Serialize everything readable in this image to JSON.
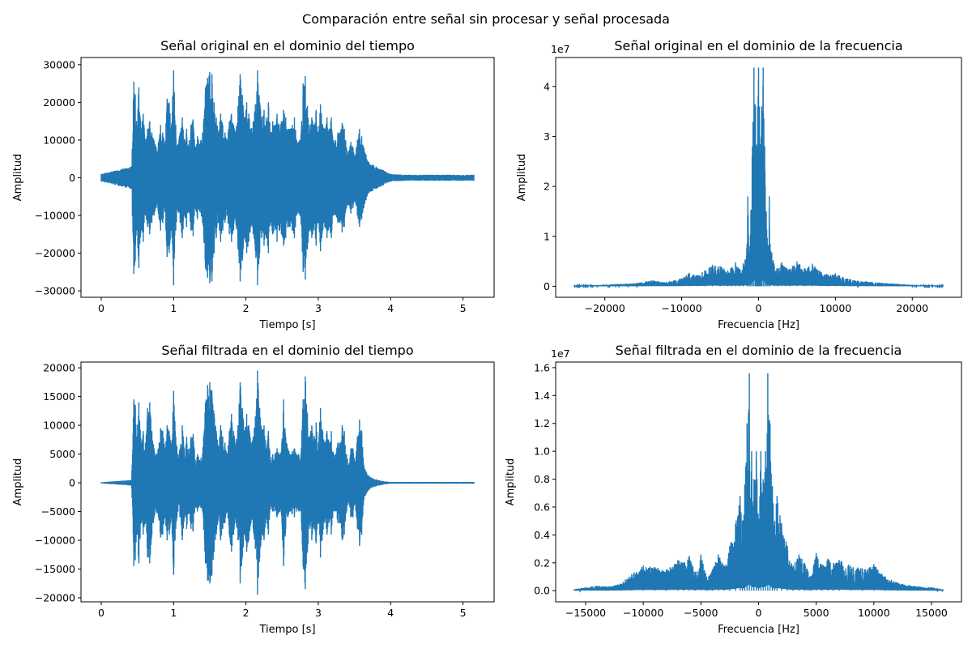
{
  "figure": {
    "suptitle": "Comparación entre señal sin procesar y señal procesada"
  },
  "colors": {
    "line": "#1f77b4",
    "axes": "#000000",
    "background": "#ffffff"
  },
  "chart_data": [
    {
      "type": "line",
      "title": "Señal original en el dominio del tiempo",
      "xlabel": "Tiempo [s]",
      "ylabel": "Amplitud",
      "xlim": [
        -0.28,
        5.43
      ],
      "ylim": [
        -31700,
        31900
      ],
      "xticks": [
        0,
        1,
        2,
        3,
        4,
        5
      ],
      "xtick_labels": [
        "0",
        "1",
        "2",
        "3",
        "4",
        "5"
      ],
      "yticks": [
        -30000,
        -20000,
        -10000,
        0,
        10000,
        20000,
        30000
      ],
      "ytick_labels": [
        "−30000",
        "−20000",
        "−10000",
        "0",
        "10000",
        "20000",
        "30000"
      ],
      "offset_text": "",
      "series": [
        {
          "x": [
            0.0,
            0.42,
            0.45,
            0.47,
            0.49,
            0.52,
            0.55,
            0.58,
            0.61,
            0.64,
            0.67,
            0.7,
            0.73,
            0.76,
            0.79,
            0.82,
            0.85,
            0.88,
            0.91,
            0.94,
            0.97,
            1.0,
            1.03,
            1.06,
            1.09,
            1.12,
            1.15,
            1.18,
            1.21,
            1.24,
            1.27,
            1.3,
            1.33,
            1.36,
            1.4,
            1.44,
            1.47,
            1.5,
            1.53,
            1.56,
            1.59,
            1.62,
            1.65,
            1.68,
            1.71,
            1.74,
            1.77,
            1.8,
            1.83,
            1.86,
            1.89,
            1.92,
            1.95,
            1.98,
            2.01,
            2.04,
            2.07,
            2.1,
            2.13,
            2.16,
            2.19,
            2.22,
            2.25,
            2.28,
            2.31,
            2.34,
            2.37,
            2.4,
            2.43,
            2.46,
            2.49,
            2.52,
            2.55,
            2.58,
            2.61,
            2.64,
            2.67,
            2.7,
            2.73,
            2.76,
            2.79,
            2.82,
            2.85,
            2.88,
            2.91,
            2.94,
            2.97,
            3.0,
            3.03,
            3.06,
            3.09,
            3.12,
            3.15,
            3.18,
            3.21,
            3.24,
            3.27,
            3.3,
            3.33,
            3.36,
            3.39,
            3.42,
            3.45,
            3.48,
            3.51,
            3.54,
            3.57,
            3.6,
            3.63,
            3.66,
            3.7,
            3.75,
            3.8,
            3.9,
            4.0,
            4.2,
            4.5,
            4.8,
            5.15
          ],
          "envelope": [
            1000,
            3000,
            25500,
            22000,
            14000,
            24000,
            13000,
            17000,
            10000,
            13000,
            15000,
            12000,
            10000,
            8000,
            9500,
            14000,
            12000,
            9000,
            21000,
            20000,
            14000,
            28500,
            14000,
            9000,
            12000,
            16000,
            10000,
            13000,
            9000,
            14000,
            15500,
            8000,
            11000,
            9000,
            12000,
            24000,
            26500,
            28000,
            27500,
            20000,
            16000,
            12000,
            17000,
            14000,
            12000,
            10000,
            15000,
            17000,
            14000,
            12000,
            19000,
            27500,
            22000,
            16000,
            20000,
            17000,
            13000,
            15000,
            19500,
            28500,
            20000,
            16000,
            18000,
            16000,
            20000,
            12000,
            15000,
            14000,
            17000,
            14000,
            15000,
            18000,
            16000,
            13000,
            13000,
            14000,
            16000,
            10000,
            9500,
            11000,
            25000,
            27000,
            19000,
            14000,
            16000,
            14000,
            18000,
            12000,
            19500,
            14000,
            13000,
            16000,
            13000,
            16000,
            10000,
            10000,
            12000,
            12000,
            14500,
            13000,
            8000,
            7000,
            9500,
            8000,
            6000,
            10000,
            13000,
            11000,
            8000,
            6000,
            4000,
            3500,
            3000,
            2000,
            1000,
            800,
            800,
            800,
            800
          ]
        }
      ]
    },
    {
      "type": "line",
      "title": "Señal original en el dominio de la frecuencia",
      "xlabel": "Frecuencia [Hz]",
      "ylabel": "Amplitud",
      "xlim": [
        -26400,
        26400
      ],
      "ylim": [
        -2200000,
        45800000
      ],
      "xticks": [
        -20000,
        -10000,
        0,
        10000,
        20000
      ],
      "xtick_labels": [
        "−20000",
        "−10000",
        "0",
        "10000",
        "20000"
      ],
      "yticks": [
        0,
        10000000,
        20000000,
        30000000,
        40000000
      ],
      "ytick_labels": [
        "0",
        "1",
        "2",
        "3",
        "4"
      ],
      "offset_text": "1e7",
      "series": [
        {
          "x": [
            -24000,
            -20000,
            -18000,
            -16000,
            -14000,
            -12000,
            -10000,
            -9000,
            -8000,
            -7000,
            -6000,
            -5000,
            -4000,
            -3500,
            -3000,
            -2500,
            -2000,
            -1500,
            -1400,
            -1200,
            -1000,
            -800,
            -600,
            -400,
            -250,
            -100,
            0,
            100,
            250,
            400,
            600,
            800,
            1000,
            1200,
            1400,
            1500,
            2000,
            2500,
            3000,
            3500,
            4000,
            5000,
            6000,
            7000,
            8000,
            9000,
            10000,
            11000,
            12000,
            14000,
            16000,
            18000,
            20000,
            24000
          ],
          "envelope": [
            150000,
            300000,
            500000,
            600000,
            1200000,
            900000,
            1600000,
            2700000,
            2200000,
            3200000,
            4300000,
            4000000,
            3200000,
            3800000,
            4800000,
            3500000,
            4600000,
            8500000,
            18000000,
            7000000,
            15000000,
            28000000,
            43800000,
            36000000,
            28000000,
            36000000,
            43800000,
            36000000,
            28000000,
            36000000,
            43800000,
            28000000,
            15000000,
            7000000,
            18000000,
            8500000,
            4600000,
            3500000,
            4800000,
            3800000,
            3500000,
            5000000,
            3600000,
            4500000,
            3000000,
            2400000,
            2600000,
            1800000,
            1400000,
            1000000,
            700000,
            500000,
            300000,
            150000
          ]
        }
      ]
    },
    {
      "type": "line",
      "title": "Señal filtrada en el dominio del tiempo",
      "xlabel": "Tiempo [s]",
      "ylabel": "Amplitud",
      "xlim": [
        -0.28,
        5.43
      ],
      "ylim": [
        -20700,
        21000
      ],
      "xticks": [
        0,
        1,
        2,
        3,
        4,
        5
      ],
      "xtick_labels": [
        "0",
        "1",
        "2",
        "3",
        "4",
        "5"
      ],
      "yticks": [
        -20000,
        -15000,
        -10000,
        -5000,
        0,
        5000,
        10000,
        15000,
        20000
      ],
      "ytick_labels": [
        "−20000",
        "−15000",
        "−10000",
        "−5000",
        "0",
        "5000",
        "10000",
        "15000",
        "20000"
      ],
      "offset_text": "",
      "series": [
        {
          "x": [
            0.0,
            0.42,
            0.45,
            0.47,
            0.49,
            0.52,
            0.55,
            0.58,
            0.61,
            0.64,
            0.67,
            0.7,
            0.73,
            0.76,
            0.79,
            0.82,
            0.85,
            0.88,
            0.91,
            0.94,
            0.97,
            1.0,
            1.03,
            1.06,
            1.09,
            1.12,
            1.15,
            1.18,
            1.21,
            1.24,
            1.27,
            1.3,
            1.33,
            1.36,
            1.4,
            1.44,
            1.47,
            1.5,
            1.53,
            1.56,
            1.59,
            1.62,
            1.65,
            1.68,
            1.71,
            1.74,
            1.77,
            1.8,
            1.83,
            1.86,
            1.89,
            1.92,
            1.95,
            1.98,
            2.01,
            2.04,
            2.07,
            2.1,
            2.13,
            2.16,
            2.19,
            2.22,
            2.25,
            2.28,
            2.31,
            2.34,
            2.37,
            2.4,
            2.43,
            2.46,
            2.49,
            2.52,
            2.55,
            2.58,
            2.61,
            2.64,
            2.67,
            2.7,
            2.73,
            2.76,
            2.79,
            2.82,
            2.85,
            2.88,
            2.91,
            2.94,
            2.97,
            3.0,
            3.03,
            3.06,
            3.09,
            3.12,
            3.15,
            3.18,
            3.21,
            3.24,
            3.27,
            3.3,
            3.33,
            3.36,
            3.39,
            3.42,
            3.45,
            3.48,
            3.51,
            3.54,
            3.57,
            3.6,
            3.63,
            3.66,
            3.7,
            3.75,
            3.8,
            3.9,
            4.0,
            4.2,
            4.5,
            4.8,
            5.15
          ],
          "envelope": [
            100,
            500,
            14500,
            13500,
            8000,
            14000,
            7000,
            9000,
            7000,
            13000,
            14000,
            9000,
            6000,
            5000,
            6000,
            9500,
            9000,
            6000,
            10000,
            9000,
            6000,
            16000,
            8000,
            5000,
            6000,
            10000,
            6000,
            8000,
            5000,
            8000,
            8500,
            4000,
            5000,
            4000,
            5000,
            14000,
            17000,
            17500,
            16000,
            12000,
            9000,
            6000,
            10000,
            8000,
            7000,
            5000,
            9000,
            12000,
            9000,
            7000,
            10000,
            17500,
            13000,
            9000,
            12000,
            10000,
            7000,
            8000,
            11500,
            19500,
            13000,
            9000,
            10000,
            6000,
            9000,
            4000,
            5000,
            5000,
            6000,
            5000,
            5500,
            14500,
            8000,
            6000,
            5000,
            5500,
            6000,
            5000,
            5000,
            5000,
            14500,
            18500,
            12000,
            8000,
            10000,
            8000,
            10500,
            7000,
            13000,
            9000,
            7000,
            9000,
            7000,
            9000,
            5000,
            5000,
            7000,
            7000,
            10000,
            9000,
            5000,
            3000,
            6000,
            6000,
            3500,
            8000,
            11000,
            9000,
            3000,
            2000,
            1200,
            800,
            600,
            300,
            150,
            150,
            150,
            150,
            150
          ]
        }
      ]
    },
    {
      "type": "line",
      "title": "Señal filtrada en el dominio de la frecuencia",
      "xlabel": "Frecuencia [Hz]",
      "ylabel": "Amplitud",
      "xlim": [
        -17600,
        17600
      ],
      "ylim": [
        -800000,
        16400000
      ],
      "xticks": [
        -15000,
        -10000,
        -5000,
        0,
        5000,
        10000,
        15000
      ],
      "xtick_labels": [
        "−15000",
        "−10000",
        "−5000",
        "0",
        "5000",
        "10000",
        "15000"
      ],
      "yticks": [
        0,
        2000000,
        4000000,
        6000000,
        8000000,
        10000000,
        12000000,
        14000000,
        16000000
      ],
      "ytick_labels": [
        "0.0",
        "0.2",
        "0.4",
        "0.6",
        "0.8",
        "1.0",
        "1.2",
        "1.4",
        "1.6"
      ],
      "offset_text": "1e7",
      "series": [
        {
          "x": [
            -16000,
            -15000,
            -14000,
            -13000,
            -12000,
            -11000,
            -10000,
            -9000,
            -8000,
            -7000,
            -6500,
            -6000,
            -5500,
            -5000,
            -4500,
            -4000,
            -3500,
            -3000,
            -2500,
            -2000,
            -1600,
            -1400,
            -1200,
            -1000,
            -800,
            -600,
            -400,
            -200,
            0,
            200,
            400,
            600,
            800,
            1000,
            1200,
            1400,
            1600,
            2000,
            2500,
            3000,
            3500,
            4000,
            4500,
            5000,
            5500,
            6000,
            6500,
            7000,
            8000,
            9000,
            10000,
            11000,
            12000,
            13000,
            14000,
            15000,
            16000
          ],
          "envelope": [
            100000,
            250000,
            350000,
            300000,
            500000,
            1200000,
            1800000,
            1700000,
            1500000,
            2200000,
            2000000,
            2500000,
            1300000,
            2600000,
            1000000,
            1500000,
            2600000,
            1800000,
            3200000,
            4800000,
            6800000,
            5000000,
            7500000,
            12000000,
            15600000,
            10000000,
            8000000,
            10000000,
            5000000,
            10000000,
            8000000,
            10000000,
            15600000,
            12000000,
            7500000,
            5000000,
            6800000,
            4800000,
            3200000,
            1800000,
            2600000,
            2000000,
            1000000,
            2700000,
            1800000,
            2300000,
            2000000,
            2200000,
            1800000,
            1600000,
            1900000,
            1000000,
            600000,
            400000,
            300000,
            250000,
            100000
          ]
        }
      ]
    }
  ]
}
